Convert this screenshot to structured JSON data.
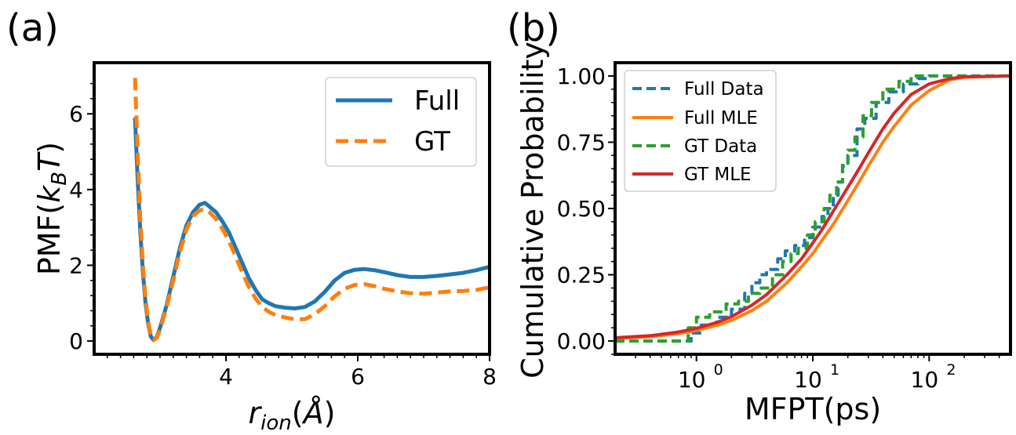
{
  "colors": {
    "blue": "#1f77b4",
    "orange": "#ff7f0e",
    "green": "#2ca02c",
    "red": "#d62728"
  },
  "chart_data": [
    {
      "panel_label": "(a)",
      "type": "line",
      "xlabel_main": "r",
      "xlabel_sub": "ion",
      "xlabel_unit_open": "(",
      "xlabel_unit": "Å",
      "xlabel_unit_close": ")",
      "ylabel_main": "PMF(",
      "ylabel_k": "k",
      "ylabel_sub": "B",
      "ylabel_T": "T",
      "ylabel_close": ")",
      "xlim": [
        2.0,
        8.0
      ],
      "ylim": [
        -0.35,
        7.35
      ],
      "xticks": [
        4,
        6,
        8
      ],
      "xtick_labels": [
        "4",
        "6",
        "8"
      ],
      "yticks": [
        0,
        2,
        4,
        6
      ],
      "ytick_labels": [
        "0",
        "2",
        "4",
        "6"
      ],
      "legend": {
        "location": "top-right",
        "entries": [
          "Full",
          "GT"
        ]
      },
      "series": [
        {
          "name": "Full",
          "style": "solid",
          "color": "#1f77b4",
          "x": [
            2.62,
            2.66,
            2.7,
            2.74,
            2.78,
            2.82,
            2.86,
            2.9,
            2.95,
            3.0,
            3.1,
            3.2,
            3.3,
            3.4,
            3.5,
            3.6,
            3.68,
            3.75,
            3.85,
            3.95,
            4.05,
            4.15,
            4.25,
            4.35,
            4.45,
            4.55,
            4.65,
            4.75,
            4.9,
            5.05,
            5.2,
            5.35,
            5.5,
            5.65,
            5.8,
            5.95,
            6.1,
            6.25,
            6.4,
            6.6,
            6.8,
            7.0,
            7.2,
            7.4,
            7.6,
            7.8,
            8.0
          ],
          "y": [
            5.9,
            4.3,
            2.9,
            1.8,
            1.0,
            0.45,
            0.12,
            0.03,
            0.1,
            0.35,
            0.95,
            1.7,
            2.45,
            3.05,
            3.4,
            3.6,
            3.65,
            3.55,
            3.4,
            3.15,
            2.85,
            2.45,
            2.05,
            1.65,
            1.35,
            1.1,
            1.0,
            0.92,
            0.88,
            0.86,
            0.9,
            1.05,
            1.3,
            1.6,
            1.8,
            1.88,
            1.9,
            1.87,
            1.82,
            1.74,
            1.69,
            1.69,
            1.72,
            1.76,
            1.8,
            1.87,
            1.96
          ]
        },
        {
          "name": "GT",
          "style": "dashed",
          "color": "#ff7f0e",
          "x": [
            2.62,
            2.66,
            2.7,
            2.74,
            2.78,
            2.82,
            2.86,
            2.9,
            2.95,
            3.0,
            3.1,
            3.2,
            3.3,
            3.4,
            3.5,
            3.6,
            3.68,
            3.75,
            3.85,
            3.95,
            4.05,
            4.15,
            4.25,
            4.35,
            4.45,
            4.55,
            4.65,
            4.75,
            4.9,
            5.05,
            5.2,
            5.35,
            5.5,
            5.65,
            5.8,
            5.95,
            6.1,
            6.25,
            6.4,
            6.6,
            6.8,
            7.0,
            7.2,
            7.4,
            7.6,
            7.8,
            8.0
          ],
          "y": [
            6.95,
            5.0,
            3.2,
            2.0,
            1.1,
            0.5,
            0.15,
            0.02,
            0.08,
            0.3,
            0.9,
            1.6,
            2.35,
            2.95,
            3.3,
            3.45,
            3.48,
            3.4,
            3.22,
            2.95,
            2.62,
            2.22,
            1.8,
            1.42,
            1.12,
            0.9,
            0.77,
            0.69,
            0.62,
            0.57,
            0.58,
            0.71,
            0.92,
            1.18,
            1.38,
            1.48,
            1.5,
            1.45,
            1.38,
            1.31,
            1.26,
            1.25,
            1.28,
            1.31,
            1.32,
            1.35,
            1.42
          ]
        }
      ]
    },
    {
      "panel_label": "(b)",
      "type": "line",
      "xscale": "log",
      "xlabel": "MFPT(ps)",
      "ylabel": "Cumulative Probability",
      "xlim": [
        0.2,
        500
      ],
      "ylim": [
        -0.05,
        1.05
      ],
      "xticks": [
        1,
        10,
        100
      ],
      "xtick_labels": [
        "10",
        "10",
        "10"
      ],
      "xtick_exponents": [
        "0",
        "1",
        "2"
      ],
      "yticks": [
        0.0,
        0.25,
        0.5,
        0.75,
        1.0
      ],
      "ytick_labels": [
        "0.00",
        "0.25",
        "0.50",
        "0.75",
        "1.00"
      ],
      "legend": {
        "location": "top-left",
        "entries": [
          "Full Data",
          "Full MLE",
          "GT Data",
          "GT MLE"
        ]
      },
      "series": [
        {
          "name": "Full Data",
          "style": "dashed-step",
          "color": "#1f77b4",
          "x": [
            0.2,
            0.9,
            1.1,
            1.5,
            2.0,
            2.6,
            3.0,
            3.5,
            4.0,
            5.0,
            5.8,
            7.0,
            8.5,
            10.0,
            12.0,
            13.5,
            15.0,
            16.5,
            18.0,
            20.0,
            24.0,
            28.0,
            35.0,
            45.0,
            60.0,
            80.0,
            100.0,
            500.0
          ],
          "y": [
            0.0,
            0.03,
            0.06,
            0.09,
            0.12,
            0.18,
            0.22,
            0.25,
            0.27,
            0.31,
            0.34,
            0.36,
            0.39,
            0.43,
            0.47,
            0.5,
            0.55,
            0.6,
            0.66,
            0.7,
            0.8,
            0.84,
            0.9,
            0.94,
            0.97,
            0.99,
            1.0,
            1.0
          ]
        },
        {
          "name": "Full MLE",
          "style": "solid",
          "color": "#ff7f0e",
          "x": [
            0.2,
            0.4,
            0.7,
            1.0,
            1.5,
            2.0,
            3.0,
            4.0,
            6.0,
            8.0,
            10.0,
            12.0,
            15.0,
            20.0,
            25.0,
            30.0,
            40.0,
            50.0,
            70.0,
            100.0,
            150.0,
            200.0,
            500.0
          ],
          "y": [
            0.01,
            0.016,
            0.028,
            0.04,
            0.059,
            0.078,
            0.115,
            0.15,
            0.22,
            0.28,
            0.33,
            0.38,
            0.44,
            0.53,
            0.6,
            0.66,
            0.75,
            0.81,
            0.89,
            0.945,
            0.985,
            0.995,
            1.0
          ]
        },
        {
          "name": "GT Data",
          "style": "dashed-step",
          "color": "#2ca02c",
          "x": [
            0.2,
            0.85,
            1.0,
            1.3,
            1.8,
            2.3,
            2.8,
            3.5,
            4.5,
            5.5,
            6.5,
            7.5,
            9.0,
            10.5,
            12.5,
            14.0,
            16.0,
            18.0,
            20.0,
            23.0,
            27.0,
            32.0,
            40.0,
            55.0,
            70.0,
            100.0,
            500.0
          ],
          "y": [
            0.0,
            0.05,
            0.09,
            0.11,
            0.14,
            0.15,
            0.18,
            0.2,
            0.25,
            0.3,
            0.33,
            0.35,
            0.4,
            0.45,
            0.5,
            0.55,
            0.6,
            0.67,
            0.72,
            0.77,
            0.85,
            0.9,
            0.95,
            0.98,
            1.0,
            1.0,
            1.0
          ]
        },
        {
          "name": "GT MLE",
          "style": "solid",
          "color": "#d62728",
          "x": [
            0.2,
            0.4,
            0.7,
            1.0,
            1.5,
            2.0,
            3.0,
            4.0,
            6.0,
            8.0,
            10.0,
            12.0,
            15.0,
            20.0,
            25.0,
            30.0,
            40.0,
            50.0,
            70.0,
            100.0,
            150.0,
            200.0,
            500.0
          ],
          "y": [
            0.012,
            0.02,
            0.034,
            0.048,
            0.07,
            0.092,
            0.135,
            0.175,
            0.25,
            0.31,
            0.37,
            0.42,
            0.49,
            0.58,
            0.65,
            0.71,
            0.8,
            0.86,
            0.93,
            0.97,
            0.99,
            0.997,
            1.0
          ]
        }
      ]
    }
  ]
}
